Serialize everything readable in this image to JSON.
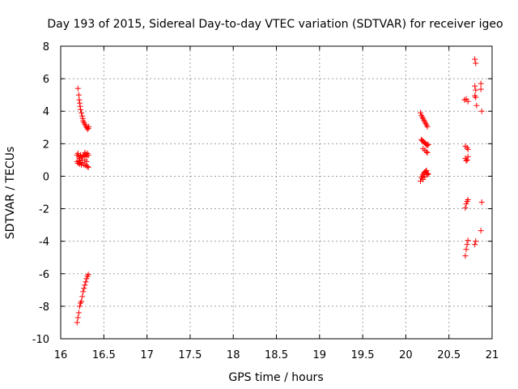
{
  "chart_data": {
    "type": "scatter",
    "title": "Day 193 of 2015, Sidereal Day-to-day VTEC variation (SDTVAR) for receiver igeo",
    "xlabel": "GPS time / hours",
    "ylabel": "SDTVAR / TECUs",
    "xlim": [
      16,
      21
    ],
    "ylim": [
      -10,
      8
    ],
    "x_ticks": [
      16,
      16.5,
      17,
      17.5,
      18,
      18.5,
      19,
      19.5,
      20,
      20.5,
      21
    ],
    "x_tick_labels": [
      "16",
      "16.5",
      "17",
      "17.5",
      "18",
      "18.5",
      "19",
      "19.5",
      "20",
      "20.5",
      "21"
    ],
    "y_ticks": [
      -10,
      -8,
      -6,
      -4,
      -2,
      0,
      2,
      4,
      6,
      8
    ],
    "y_tick_labels": [
      "-10",
      "-8",
      "-6",
      "-4",
      "-2",
      "0",
      "2",
      "4",
      "6",
      "8"
    ],
    "grid": true,
    "marker": "plus",
    "color": "#ff0000",
    "series": [
      {
        "name": "SDTVAR",
        "points": [
          [
            16.2,
            5.4
          ],
          [
            16.21,
            5.0
          ],
          [
            16.215,
            4.7
          ],
          [
            16.22,
            4.5
          ],
          [
            16.225,
            4.3
          ],
          [
            16.23,
            4.1
          ],
          [
            16.24,
            3.9
          ],
          [
            16.25,
            3.7
          ],
          [
            16.255,
            3.55
          ],
          [
            16.26,
            3.4
          ],
          [
            16.27,
            3.3
          ],
          [
            16.28,
            3.2
          ],
          [
            16.29,
            3.1
          ],
          [
            16.3,
            3.0
          ],
          [
            16.31,
            2.9
          ],
          [
            16.32,
            2.95
          ],
          [
            16.325,
            3.05
          ],
          [
            16.19,
            1.3
          ],
          [
            16.2,
            1.4
          ],
          [
            16.21,
            1.2
          ],
          [
            16.22,
            1.1
          ],
          [
            16.23,
            1.3
          ],
          [
            16.24,
            1.2
          ],
          [
            16.25,
            1.0
          ],
          [
            16.26,
            1.25
          ],
          [
            16.27,
            1.3
          ],
          [
            16.28,
            1.45
          ],
          [
            16.29,
            1.35
          ],
          [
            16.3,
            1.2
          ],
          [
            16.31,
            1.4
          ],
          [
            16.32,
            1.3
          ],
          [
            16.19,
            0.9
          ],
          [
            16.2,
            0.8
          ],
          [
            16.21,
            0.95
          ],
          [
            16.22,
            0.75
          ],
          [
            16.23,
            0.85
          ],
          [
            16.24,
            0.7
          ],
          [
            16.25,
            0.8
          ],
          [
            16.27,
            0.7
          ],
          [
            16.29,
            0.65
          ],
          [
            16.31,
            0.6
          ],
          [
            16.32,
            0.55
          ],
          [
            16.3,
            0.9
          ],
          [
            16.28,
            1.0
          ],
          [
            16.19,
            -9.0
          ],
          [
            16.2,
            -8.7
          ],
          [
            16.21,
            -8.4
          ],
          [
            16.22,
            -8.0
          ],
          [
            16.23,
            -7.8
          ],
          [
            16.24,
            -7.7
          ],
          [
            16.25,
            -7.4
          ],
          [
            16.26,
            -7.1
          ],
          [
            16.27,
            -6.9
          ],
          [
            16.28,
            -6.7
          ],
          [
            16.29,
            -6.5
          ],
          [
            16.3,
            -6.3
          ],
          [
            16.31,
            -6.15
          ],
          [
            16.32,
            -6.05
          ],
          [
            20.17,
            3.9
          ],
          [
            20.18,
            3.75
          ],
          [
            20.19,
            3.65
          ],
          [
            20.2,
            3.55
          ],
          [
            20.21,
            3.45
          ],
          [
            20.22,
            3.35
          ],
          [
            20.23,
            3.25
          ],
          [
            20.24,
            3.15
          ],
          [
            20.25,
            3.05
          ],
          [
            20.18,
            2.25
          ],
          [
            20.19,
            2.2
          ],
          [
            20.2,
            2.15
          ],
          [
            20.21,
            2.1
          ],
          [
            20.22,
            2.05
          ],
          [
            20.23,
            2.0
          ],
          [
            20.24,
            1.95
          ],
          [
            20.25,
            1.9
          ],
          [
            20.26,
            1.95
          ],
          [
            20.2,
            1.7
          ],
          [
            20.22,
            1.6
          ],
          [
            20.24,
            1.5
          ],
          [
            20.25,
            1.45
          ],
          [
            20.17,
            -0.3
          ],
          [
            20.18,
            -0.1
          ],
          [
            20.19,
            0.0
          ],
          [
            20.2,
            0.1
          ],
          [
            20.21,
            0.2
          ],
          [
            20.22,
            0.25
          ],
          [
            20.23,
            0.3
          ],
          [
            20.24,
            0.2
          ],
          [
            20.25,
            0.1
          ],
          [
            20.26,
            0.15
          ],
          [
            20.2,
            -0.2
          ],
          [
            20.22,
            -0.05
          ],
          [
            20.24,
            0.35
          ],
          [
            20.68,
            4.7
          ],
          [
            20.7,
            4.75
          ],
          [
            20.72,
            4.6
          ],
          [
            20.69,
            1.85
          ],
          [
            20.71,
            1.75
          ],
          [
            20.72,
            1.65
          ],
          [
            20.69,
            1.1
          ],
          [
            20.7,
            0.95
          ],
          [
            20.71,
            1.0
          ],
          [
            20.72,
            1.2
          ],
          [
            20.69,
            -1.95
          ],
          [
            20.7,
            -1.7
          ],
          [
            20.71,
            -1.55
          ],
          [
            20.72,
            -1.45
          ],
          [
            20.69,
            -4.9
          ],
          [
            20.7,
            -4.5
          ],
          [
            20.71,
            -4.2
          ],
          [
            20.72,
            -3.95
          ],
          [
            20.8,
            7.2
          ],
          [
            20.81,
            6.95
          ],
          [
            20.8,
            5.55
          ],
          [
            20.81,
            5.3
          ],
          [
            20.8,
            4.95
          ],
          [
            20.81,
            4.85
          ],
          [
            20.82,
            4.35
          ],
          [
            20.87,
            5.7
          ],
          [
            20.87,
            5.35
          ],
          [
            20.88,
            4.0
          ],
          [
            20.88,
            -1.6
          ],
          [
            20.87,
            -3.35
          ],
          [
            20.81,
            -4.0
          ],
          [
            20.8,
            -4.2
          ]
        ]
      }
    ]
  }
}
